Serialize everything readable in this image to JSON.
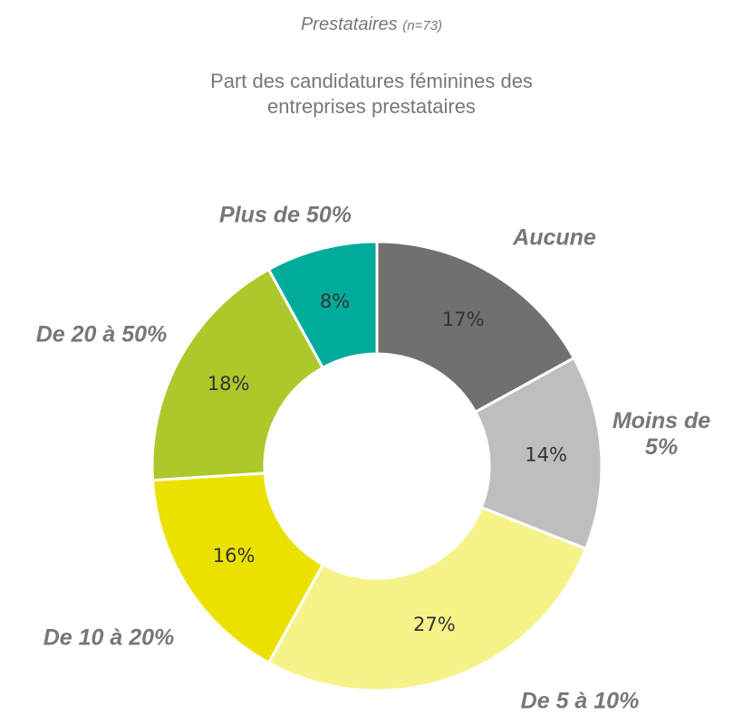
{
  "chart_data": {
    "type": "donut",
    "title": "Prestataires",
    "title_note": "(n=73)",
    "subtitle": "Part des candidatures féminines des entreprises prestataires",
    "categories": [
      "Aucune",
      "Moins de 5%",
      "De 5 à 10%",
      "De 10 à 20%",
      "De 20 à 50%",
      "Plus de 50%"
    ],
    "values": [
      17,
      14,
      27,
      16,
      18,
      8
    ],
    "value_labels": [
      "17%",
      "14%",
      "27%",
      "16%",
      "18%",
      "8%"
    ],
    "colors": [
      "#736f6c",
      "#bebebe",
      "#f5f28a",
      "#ebe100",
      "#abc92b",
      "#00ab9b"
    ]
  }
}
